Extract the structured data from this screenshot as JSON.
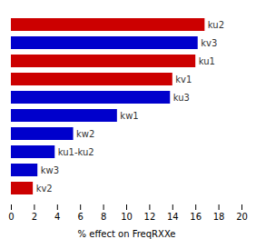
{
  "chart_data": {
    "type": "bar",
    "orientation": "horizontal",
    "categories": [
      "ku2",
      "kv3",
      "ku1",
      "kv1",
      "ku3",
      "kw1",
      "kw2",
      "ku1-ku2",
      "kw3",
      "kv2"
    ],
    "values": [
      16.8,
      16.2,
      16.0,
      14.0,
      13.8,
      9.2,
      5.4,
      3.8,
      2.3,
      1.9
    ],
    "colors": [
      "#cc0000",
      "#0000cc",
      "#cc0000",
      "#cc0000",
      "#0000cc",
      "#0000cc",
      "#0000cc",
      "#0000cc",
      "#0000cc",
      "#cc0000"
    ],
    "xlabel": "% effect on FreqRXXe",
    "xlim": [
      0,
      20
    ],
    "xticks": [
      0,
      2,
      4,
      6,
      8,
      10,
      12,
      14,
      16,
      18,
      20
    ],
    "grid": false,
    "tick_labels": "x"
  }
}
